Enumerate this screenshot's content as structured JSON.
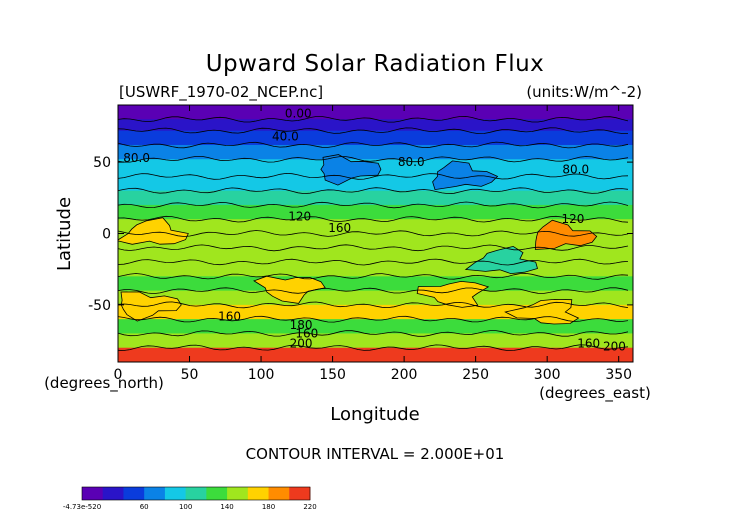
{
  "chart_data": {
    "type": "heatmap",
    "title": "Upward Solar Radiation Flux",
    "file_label": "[USWRF_1970-02_NCEP.nc]",
    "units_label": "(units:W/m^-2)",
    "xlabel": "Longitude",
    "ylabel": "Latitude",
    "x_unit_label": "(degrees_east)",
    "y_unit_label": "(degrees_north)",
    "xlim": [
      0,
      360
    ],
    "ylim": [
      -90,
      90
    ],
    "x_ticks": [
      0,
      50,
      100,
      150,
      200,
      250,
      300,
      350
    ],
    "y_ticks": [
      50,
      0,
      -50
    ],
    "contour_interval_text": "CONTOUR INTERVAL = 2.000E+01",
    "contour_interval": 20,
    "colorbar": {
      "tick_labels": [
        "-4.73e-520",
        "60",
        "100",
        "140",
        "180",
        "220"
      ],
      "tick_values": [
        0,
        60,
        100,
        140,
        180,
        220
      ],
      "levels": [
        0,
        20,
        40,
        60,
        80,
        100,
        120,
        140,
        160,
        180,
        200,
        220
      ],
      "colors": [
        "#5a00b4",
        "#2a14c8",
        "#0a3cdc",
        "#0a82e6",
        "#14c8e6",
        "#28d2a0",
        "#3cdc3c",
        "#a0e61e",
        "#ffd200",
        "#ff8c00",
        "#ee3a1e",
        "#f79a9a"
      ]
    },
    "contour_labels": [
      {
        "text": "0.00",
        "lon": 126,
        "lat": 84
      },
      {
        "text": "40.0",
        "lon": 117,
        "lat": 68
      },
      {
        "text": "80.0",
        "lon": 13,
        "lat": 53
      },
      {
        "text": "80.0",
        "lon": 205,
        "lat": 50
      },
      {
        "text": "80.0",
        "lon": 320,
        "lat": 45
      },
      {
        "text": "120",
        "lon": 127,
        "lat": 12
      },
      {
        "text": "160",
        "lon": 155,
        "lat": 4
      },
      {
        "text": "120",
        "lon": 318,
        "lat": 10
      },
      {
        "text": "160",
        "lon": 78,
        "lat": -58
      },
      {
        "text": "180",
        "lon": 128,
        "lat": -64
      },
      {
        "text": "160",
        "lon": 132,
        "lat": -70
      },
      {
        "text": "200",
        "lon": 128,
        "lat": -77
      },
      {
        "text": "160",
        "lon": 329,
        "lat": -77
      },
      {
        "text": "200",
        "lon": 347,
        "lat": -79
      }
    ],
    "zonal_profile": [
      {
        "lat": 90,
        "value": 0
      },
      {
        "lat": 80,
        "value": 20
      },
      {
        "lat": 72,
        "value": 40
      },
      {
        "lat": 62,
        "value": 60
      },
      {
        "lat": 52,
        "value": 80
      },
      {
        "lat": 40,
        "value": 90
      },
      {
        "lat": 30,
        "value": 100
      },
      {
        "lat": 20,
        "value": 120
      },
      {
        "lat": 10,
        "value": 140
      },
      {
        "lat": 0,
        "value": 145
      },
      {
        "lat": -10,
        "value": 145
      },
      {
        "lat": -20,
        "value": 145
      },
      {
        "lat": -30,
        "value": 135
      },
      {
        "lat": -40,
        "value": 150
      },
      {
        "lat": -50,
        "value": 160
      },
      {
        "lat": -60,
        "value": 130
      },
      {
        "lat": -70,
        "value": 140
      },
      {
        "lat": -80,
        "value": 210
      },
      {
        "lat": -90,
        "value": 220
      }
    ],
    "hotspots": [
      {
        "lon": 25,
        "lat": 0,
        "value": 175
      },
      {
        "lon": 310,
        "lat": -2,
        "value": 180
      },
      {
        "lon": 20,
        "lat": -50,
        "value": 170
      },
      {
        "lon": 120,
        "lat": -38,
        "value": 175
      },
      {
        "lon": 235,
        "lat": -42,
        "value": 175
      },
      {
        "lon": 300,
        "lat": -55,
        "value": 170
      },
      {
        "lon": 270,
        "lat": -20,
        "value": 110
      },
      {
        "lon": 240,
        "lat": 40,
        "value": 70
      },
      {
        "lon": 160,
        "lat": 45,
        "value": 70
      }
    ],
    "grid": false
  }
}
